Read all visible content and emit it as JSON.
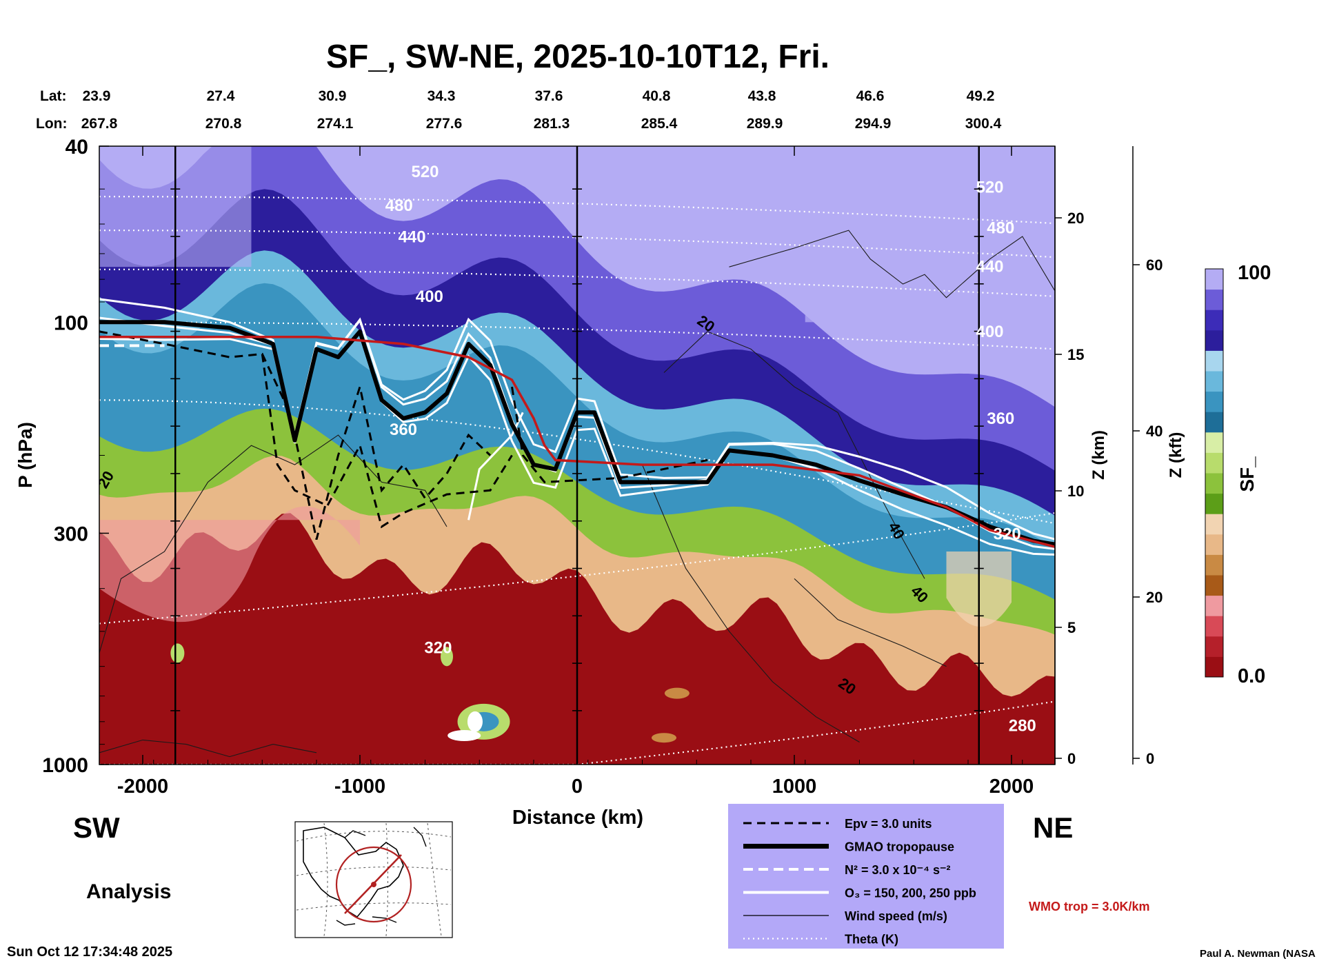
{
  "chart_data": {
    "type": "heatmap",
    "title": "SF_, SW-NE, 2025-10-10T12, Fri.",
    "lat_label": "Lat:",
    "lon_label": "Lon:",
    "lat_ticks": [
      "23.9",
      "27.4",
      "30.9",
      "34.3",
      "37.6",
      "40.8",
      "43.8",
      "46.6",
      "49.2"
    ],
    "lon_ticks": [
      "267.8",
      "270.8",
      "274.1",
      "277.6",
      "281.3",
      "285.4",
      "289.9",
      "294.9",
      "300.4"
    ],
    "xlabel": "Distance (km)",
    "xlim": [
      -2200,
      2200
    ],
    "x_ticks": [
      -2000,
      -1000,
      0,
      1000,
      2000
    ],
    "x_tick_labels": [
      "-2000",
      "-1000",
      "0",
      "1000",
      "2000"
    ],
    "ylabel": "P (hPa)",
    "ylim": [
      1000,
      40
    ],
    "y_scale": "log",
    "y_ticks": [
      40,
      100,
      300,
      1000
    ],
    "y_tick_labels": [
      "40",
      "100",
      "300",
      "1000"
    ],
    "z_km_label": "Z (km)",
    "z_km_ticks": [
      "20",
      "15",
      "10",
      "5",
      "0"
    ],
    "z_kft_label": "Z (kft)",
    "z_kft_ticks": [
      "60",
      "40",
      "20",
      "0"
    ],
    "colorbar": {
      "label": "SF_",
      "max_label": "100",
      "min_label": "0.0",
      "colors": [
        "#9a0e14",
        "#b5202a",
        "#d84a57",
        "#ef9aa0",
        "#a85a18",
        "#c98a44",
        "#e8b888",
        "#f2d4b2",
        "#5c9e18",
        "#8cc23c",
        "#b8dc6c",
        "#d8eea6",
        "#1e6e98",
        "#3a94c0",
        "#6ab8dc",
        "#a8d6ee",
        "#2c1e9c",
        "#3c2cb8",
        "#6c5cd8",
        "#b4acf4"
      ]
    },
    "theta_labels": [
      "520",
      "480",
      "440",
      "400",
      "360",
      "320",
      "280",
      "520",
      "480",
      "440",
      "400",
      "360",
      "320"
    ],
    "wind_labels": [
      "20",
      "20",
      "40",
      "40",
      "20"
    ],
    "tropopause_p": [
      [
        -2200,
        100
      ],
      [
        -1900,
        100
      ],
      [
        -1600,
        103
      ],
      [
        -1400,
        112
      ],
      [
        -1300,
        185
      ],
      [
        -1200,
        115
      ],
      [
        -1100,
        120
      ],
      [
        -1000,
        105
      ],
      [
        -900,
        150
      ],
      [
        -800,
        165
      ],
      [
        -700,
        160
      ],
      [
        -600,
        145
      ],
      [
        -500,
        112
      ],
      [
        -400,
        125
      ],
      [
        -300,
        170
      ],
      [
        -200,
        210
      ],
      [
        -100,
        215
      ],
      [
        0,
        160
      ],
      [
        80,
        160
      ],
      [
        200,
        230
      ],
      [
        400,
        230
      ],
      [
        600,
        230
      ],
      [
        700,
        195
      ],
      [
        900,
        200
      ],
      [
        1100,
        210
      ],
      [
        1300,
        228
      ],
      [
        1500,
        245
      ],
      [
        1700,
        262
      ],
      [
        1900,
        290
      ],
      [
        2100,
        312
      ],
      [
        2200,
        318
      ]
    ],
    "wmo_trop_p": [
      [
        -2200,
        108
      ],
      [
        -1600,
        108
      ],
      [
        -1200,
        108
      ],
      [
        -800,
        112
      ],
      [
        -500,
        120
      ],
      [
        -300,
        135
      ],
      [
        -200,
        165
      ],
      [
        -150,
        190
      ],
      [
        -100,
        205
      ],
      [
        300,
        210
      ],
      [
        900,
        210
      ],
      [
        1300,
        222
      ],
      [
        1700,
        262
      ],
      [
        1900,
        295
      ],
      [
        2200,
        322
      ]
    ],
    "top_note": "",
    "left_word": "SW",
    "right_word": "NE",
    "analysis_label": "Analysis",
    "legend": {
      "items": [
        {
          "label": "Epv = 3.0 units",
          "style": "dashed-black"
        },
        {
          "label": "GMAO tropopause",
          "style": "thick-black"
        },
        {
          "label": "N² = 3.0 x 10⁻⁴ s⁻²",
          "style": "dashed-white"
        },
        {
          "label": "O₃ = 150, 200, 250 ppb",
          "style": "solid-white"
        },
        {
          "label": "Wind speed (m/s)",
          "style": "thin-black"
        },
        {
          "label": "Theta (K)",
          "style": "dotted-white"
        }
      ],
      "background": "#b3a8f8"
    },
    "wmo_label": "WMO trop = 3.0K/km",
    "wmo_color": "#c41a1a",
    "timestamp": "Sun Oct 12 17:34:48 2025",
    "credit": "Paul A. Newman (NASA"
  }
}
